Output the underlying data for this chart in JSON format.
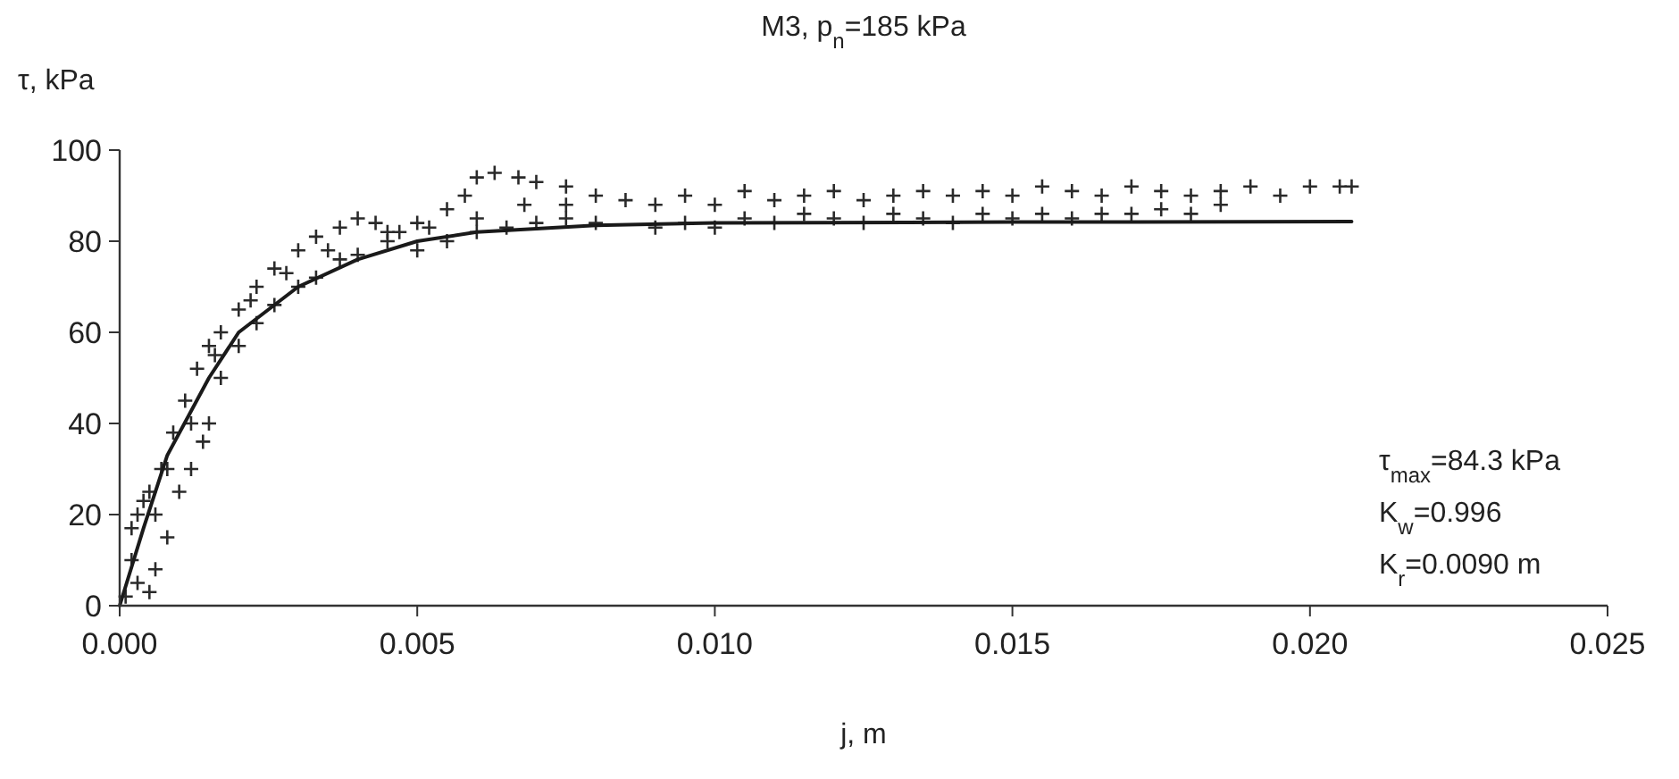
{
  "chart_data": {
    "type": "scatter",
    "title": "M3, p$_{n}$=185 kPa",
    "xlabel": "j, m",
    "ylabel": "τ, kPa",
    "xlim": [
      0,
      0.025
    ],
    "xticks": [
      {
        "value": 0,
        "label": "0.000"
      },
      {
        "value": 0.005,
        "label": "0.005"
      },
      {
        "value": 0.01,
        "label": "0.010"
      },
      {
        "value": 0.015,
        "label": "0.015"
      },
      {
        "value": 0.02,
        "label": "0.020"
      },
      {
        "value": 0.025,
        "label": "0.025"
      }
    ],
    "ylim": [
      0,
      100
    ],
    "yticks": [
      0,
      20,
      40,
      60,
      80,
      100
    ],
    "grid": false,
    "annotations": [
      "τ$_{max}$=84.3 kPa",
      "K$_{w}$=0.996",
      "K$_{r}$=0.0090 m"
    ],
    "series": [
      {
        "color": "#2a2a2a",
        "marker": "cross",
        "x": [
          0.0002,
          0.0003,
          0.0005,
          0.0007,
          0.0009,
          0.0011,
          0.0013,
          0.0015,
          0.0017,
          0.002,
          0.0023,
          0.0026,
          0.003,
          0.0033,
          0.0037,
          0.004,
          0.0043,
          0.0047,
          0.005,
          0.0055,
          0.0058,
          0.006,
          0.0063,
          0.0067,
          0.007,
          0.0075,
          0.008,
          0.0085,
          0.009,
          0.0003,
          0.0005,
          0.0006,
          0.0008,
          0.001,
          0.0012,
          0.0014,
          0.0015,
          0.0017,
          0.002,
          0.0023,
          0.0026,
          0.003,
          0.0033,
          0.0037,
          0.004,
          0.0045,
          0.005,
          0.0055,
          0.006,
          0.0065,
          0.007,
          0.0075,
          0.008,
          0.009,
          0.0001,
          0.0002,
          0.0004,
          0.0006,
          0.0008,
          0.0012,
          0.0016,
          0.0022,
          0.0028,
          0.0035,
          0.0045,
          0.0052,
          0.006,
          0.0068,
          0.0075,
          0.0095,
          0.0095,
          0.01,
          0.01,
          0.0105,
          0.0105,
          0.011,
          0.011,
          0.0115,
          0.0115,
          0.012,
          0.012,
          0.0125,
          0.0125,
          0.013,
          0.013,
          0.0135,
          0.0135,
          0.014,
          0.014,
          0.0145,
          0.0145,
          0.015,
          0.015,
          0.0155,
          0.0155,
          0.016,
          0.016,
          0.0165,
          0.0165,
          0.017,
          0.017,
          0.0175,
          0.0175,
          0.018,
          0.018,
          0.0185,
          0.0185,
          0.019,
          0.0195,
          0.02,
          0.0205,
          0.0207
        ],
        "values": [
          10,
          20,
          25,
          30,
          38,
          45,
          52,
          57,
          60,
          65,
          70,
          74,
          78,
          81,
          83,
          85,
          84,
          82,
          84,
          87,
          90,
          94,
          95,
          94,
          93,
          92,
          90,
          89,
          88,
          5,
          3,
          8,
          15,
          25,
          30,
          36,
          40,
          50,
          57,
          62,
          66,
          70,
          72,
          76,
          77,
          80,
          78,
          80,
          82,
          83,
          84,
          85,
          84,
          83,
          2,
          17,
          23,
          20,
          30,
          40,
          55,
          67,
          73,
          78,
          82,
          83,
          85,
          88,
          88,
          90,
          84,
          88,
          83,
          91,
          85,
          89,
          84,
          90,
          86,
          91,
          85,
          89,
          84,
          90,
          86,
          91,
          85,
          90,
          84,
          91,
          86,
          90,
          85,
          92,
          86,
          91,
          85,
          90,
          86,
          92,
          86,
          91,
          87,
          90,
          86,
          91,
          88,
          92,
          90,
          92,
          92,
          92
        ]
      },
      {
        "type": "line",
        "color": "#1a1a1a",
        "marker": "none",
        "line_style": "solid",
        "x": [
          0,
          0.0004,
          0.0008,
          0.0015,
          0.002,
          0.003,
          0.004,
          0.005,
          0.006,
          0.008,
          0.01,
          0.015,
          0.0207
        ],
        "values": [
          0,
          17,
          33,
          50,
          60,
          70,
          76,
          80,
          82,
          83.5,
          84,
          84.2,
          84.3
        ]
      }
    ]
  }
}
